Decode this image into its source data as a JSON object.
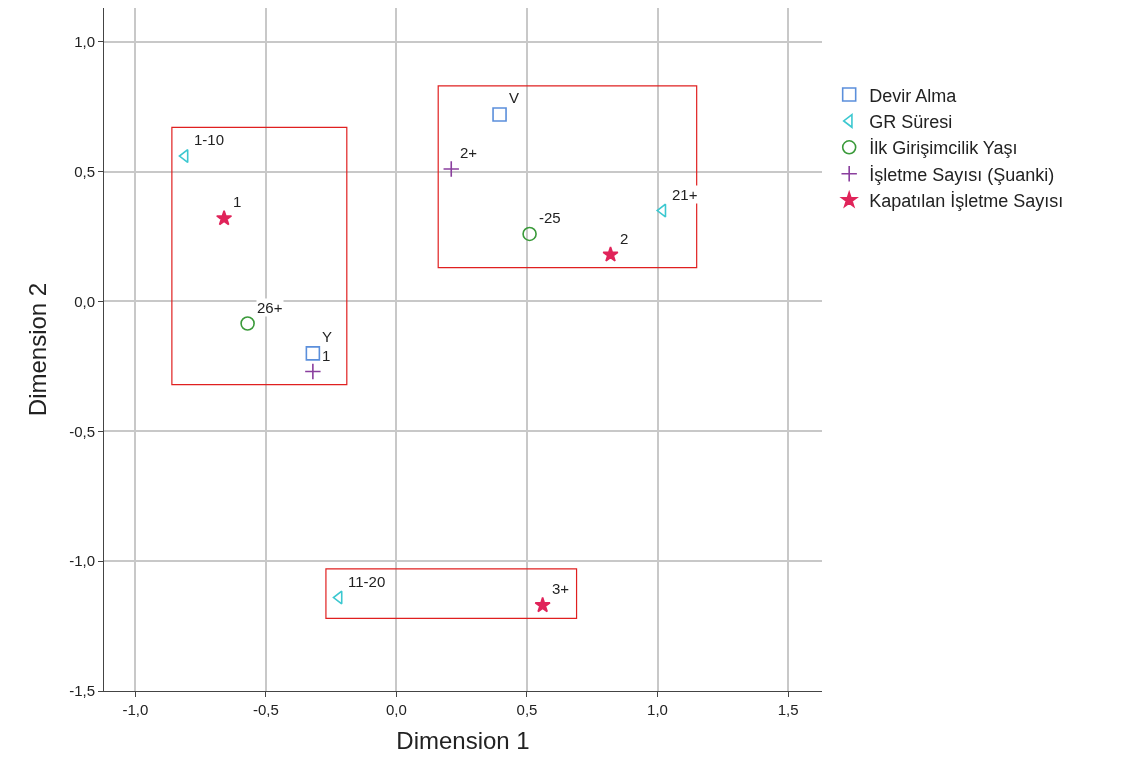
{
  "chart_data": {
    "type": "scatter",
    "xlabel": "Dimension 1",
    "ylabel": "Dimension 2",
    "series": [
      {
        "name": "Devir Alma",
        "color": "#5b8fdb",
        "marker": "square",
        "x": [
          0.395,
          -0.32
        ],
        "values": [
          0.72,
          -0.2
        ]
      },
      {
        "name": "GR Süresi",
        "color": "#3cc8d0",
        "marker": "triangle",
        "x": [
          -0.81,
          1.02,
          -0.22
        ],
        "values": [
          0.56,
          0.35,
          -1.14
        ]
      },
      {
        "name": "İlk Girişimcilik Yaşı",
        "color": "#3a9a3a",
        "marker": "circle",
        "x": [
          0.51,
          -0.57
        ],
        "values": [
          0.26,
          -0.085
        ]
      },
      {
        "name": "İşletme Sayısı (Şuanki)",
        "color": "#8a3f9e",
        "marker": "cross",
        "x": [
          0.21,
          -0.32
        ],
        "values": [
          0.51,
          -0.27
        ]
      },
      {
        "name": "Kapatılan İşletme Sayısı",
        "color": "#e0245a",
        "marker": "star",
        "x": [
          -0.66,
          0.82,
          0.56
        ],
        "values": [
          0.32,
          0.18,
          -1.17
        ]
      }
    ],
    "annotations": [
      {
        "text": "V",
        "x": 0.395,
        "y": 0.72
      },
      {
        "text": "Y",
        "x": -0.32,
        "y": -0.2
      },
      {
        "text": "1-10",
        "x": -0.81,
        "y": 0.56
      },
      {
        "text": "21+",
        "x": 1.02,
        "y": 0.35
      },
      {
        "text": "11-20",
        "x": -0.22,
        "y": -1.14
      },
      {
        "text": "-25",
        "x": 0.51,
        "y": 0.26
      },
      {
        "text": "26+",
        "x": -0.57,
        "y": -0.085
      },
      {
        "text": "2+",
        "x": 0.21,
        "y": 0.51
      },
      {
        "text": "1",
        "x": -0.32,
        "y": -0.27
      },
      {
        "text": "1",
        "x": -0.66,
        "y": 0.32
      },
      {
        "text": "2",
        "x": 0.82,
        "y": 0.18
      },
      {
        "text": "3+",
        "x": 0.56,
        "y": -1.17
      }
    ],
    "xlim": [
      -1.12,
      1.63
    ],
    "ylim": [
      -1.5,
      1.13
    ],
    "xticks": [
      {
        "value": -1.0,
        "label": "-1,0"
      },
      {
        "value": -0.5,
        "label": "-0,5"
      },
      {
        "value": 0.0,
        "label": "0,0"
      },
      {
        "value": 0.5,
        "label": "0,5"
      },
      {
        "value": 1.0,
        "label": "1,0"
      },
      {
        "value": 1.5,
        "label": "1,5"
      }
    ],
    "yticks": [
      {
        "value": -1.5,
        "label": "-1,5"
      },
      {
        "value": -1.0,
        "label": "-1,0"
      },
      {
        "value": -0.5,
        "label": "-0,5"
      },
      {
        "value": 0.0,
        "label": "0,0"
      },
      {
        "value": 0.5,
        "label": "0,5"
      },
      {
        "value": 1.0,
        "label": "1,0"
      }
    ],
    "grid": true,
    "legend": "top right"
  }
}
